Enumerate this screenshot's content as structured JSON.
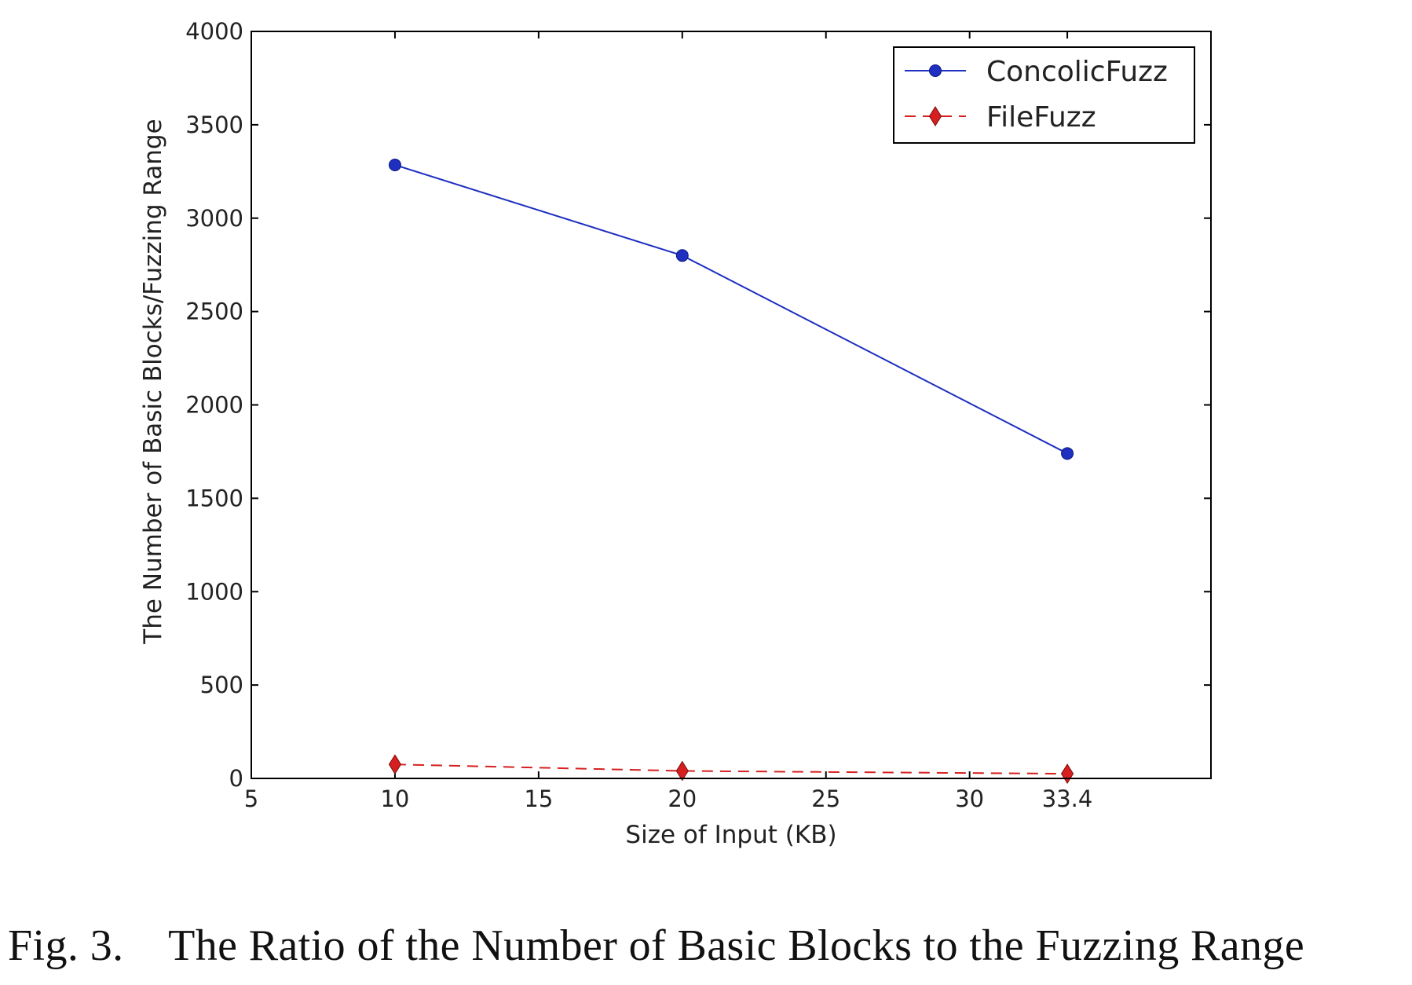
{
  "chart_data": {
    "type": "line",
    "xlabel": "Size of Input (KB)",
    "ylabel": "The Number of Basic Blocks/Fuzzing Range",
    "xlim": [
      5,
      38.4
    ],
    "ylim": [
      0,
      4000
    ],
    "x_ticks": [
      5,
      10,
      15,
      20,
      25,
      30,
      33.4
    ],
    "x_tick_labels": [
      "5",
      "10",
      "15",
      "20",
      "25",
      "30",
      "33.4"
    ],
    "y_ticks": [
      0,
      500,
      1000,
      1500,
      2000,
      2500,
      3000,
      3500,
      4000
    ],
    "grid": false,
    "legend_position": "top-right",
    "series": [
      {
        "name": "ConcolicFuzz",
        "color": "#1f2fbf",
        "line_style": "solid",
        "marker": "circle",
        "x": [
          10,
          20,
          33.4
        ],
        "values": [
          3285,
          2800,
          1740
        ]
      },
      {
        "name": "FileFuzz",
        "color": "#d62020",
        "line_style": "dashed",
        "marker": "diamond",
        "x": [
          10,
          20,
          33.4
        ],
        "values": [
          75,
          40,
          25
        ]
      }
    ]
  },
  "caption": "Fig. 3.    The Ratio of the Number of Basic Blocks to the Fuzzing Range"
}
